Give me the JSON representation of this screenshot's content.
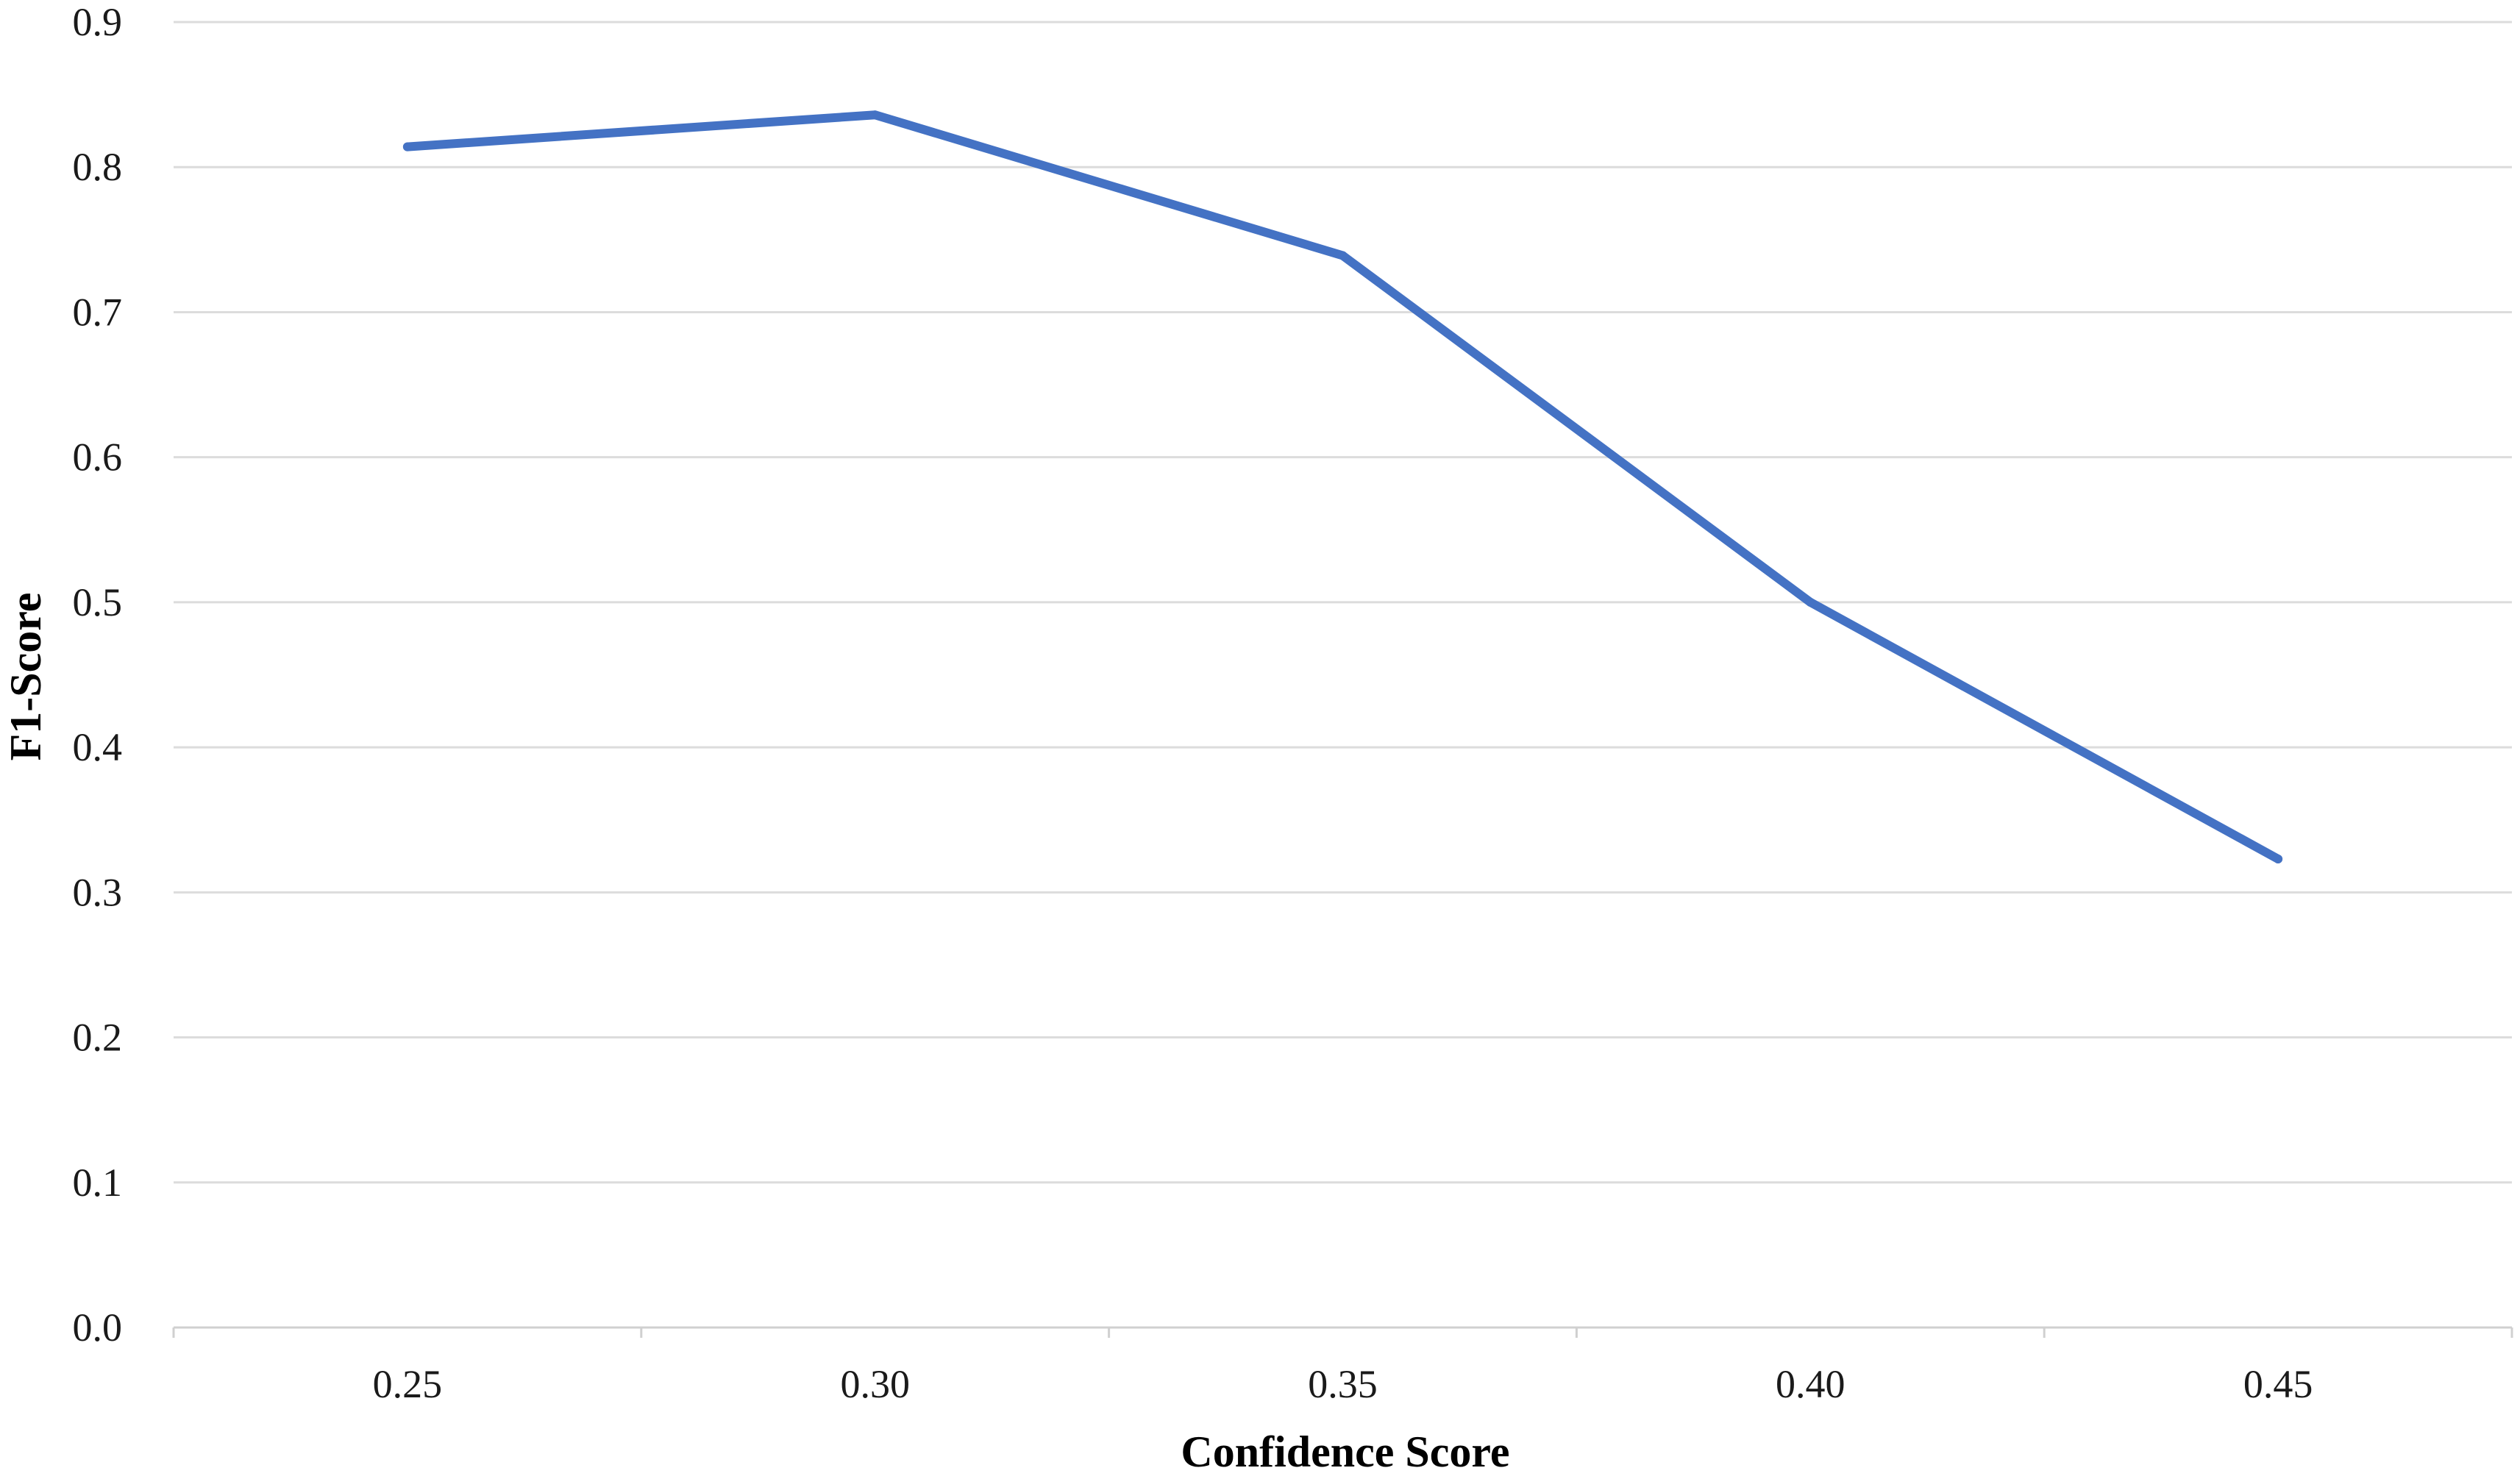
{
  "chart_data": {
    "type": "line",
    "title": "",
    "xlabel": "Confidence Score",
    "ylabel": "F1-Score",
    "categories": [
      "0.25",
      "0.30",
      "0.35",
      "0.40",
      "0.45"
    ],
    "series": [
      {
        "values": [
          0.814,
          0.836,
          0.739,
          0.5,
          0.323
        ],
        "color": "#4472c4"
      }
    ],
    "ylim": [
      0,
      0.9
    ],
    "yticks": [
      "0.0",
      "0.1",
      "0.2",
      "0.3",
      "0.4",
      "0.5",
      "0.6",
      "0.7",
      "0.8",
      "0.9"
    ],
    "grid": true,
    "legend": "none"
  }
}
